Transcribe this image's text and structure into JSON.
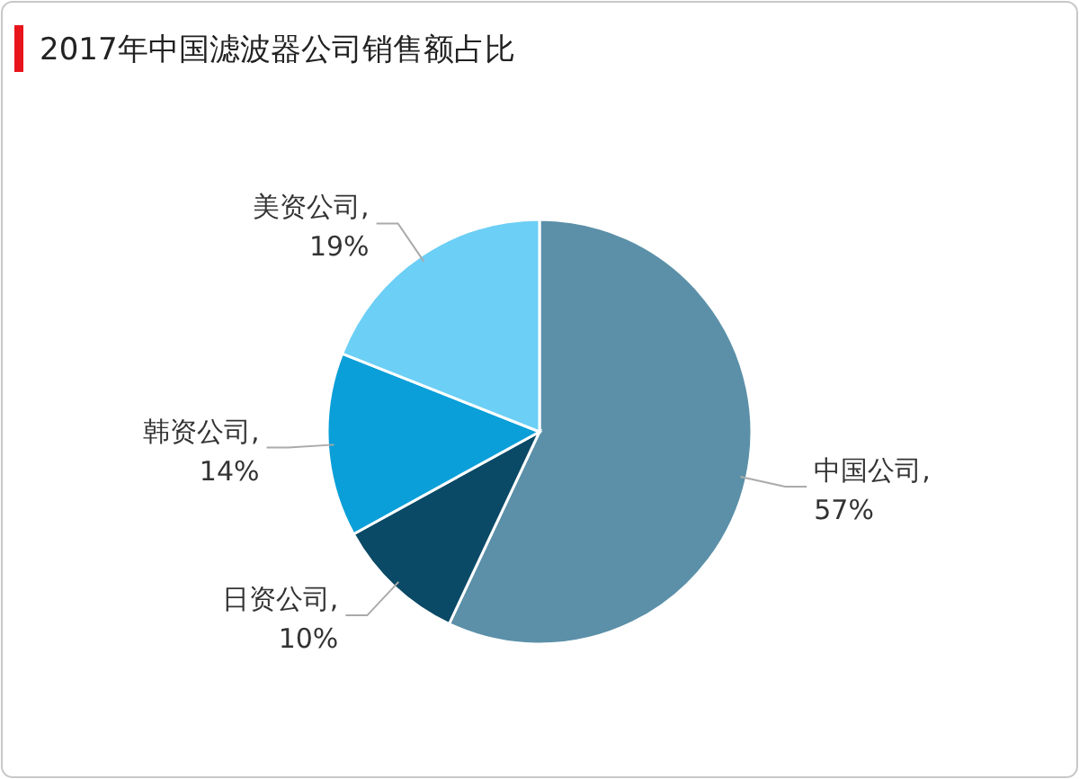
{
  "chart_data": {
    "type": "pie",
    "title": "2017年中国滤波器公司销售额占比",
    "categories": [
      "中国公司",
      "日资公司",
      "韩资公司",
      "美资公司"
    ],
    "values": [
      57,
      10,
      14,
      19
    ],
    "colors": [
      "#5b90a8",
      "#0b4a66",
      "#0a9fd8",
      "#6ccff5"
    ],
    "value_labels": [
      ",\n57%",
      ",\n10%",
      ",\n14%",
      ",\n19%"
    ]
  }
}
